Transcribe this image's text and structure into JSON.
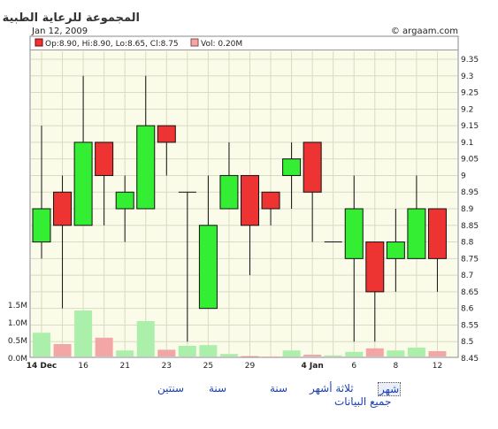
{
  "header": {
    "title": "المجموعة للرعاية الطبية",
    "date": "Jan 12, 2009",
    "source": "© argaam.com"
  },
  "legend": {
    "ohlc_label": "Op:8.90, Hi:8.90, Lo:8.65, Cl:8.75",
    "vol_label": "Vol: 0.20M"
  },
  "colors": {
    "up": "#33ee33",
    "down": "#ee3333",
    "vol_up": "#aaf0aa",
    "vol_down": "#f3a6a6",
    "plot_bg": "#fbfbe9",
    "grid": "#dadbc2"
  },
  "chart_data": {
    "type": "candlestick",
    "x_tick_labels": [
      "14 Dec",
      "16",
      "21",
      "23",
      "25",
      "29",
      "4 Jan",
      "6",
      "8",
      "12"
    ],
    "price_axis": {
      "ylim": [
        8.45,
        9.35
      ],
      "ticks": [
        "8.45",
        "8.5",
        "8.55",
        "8.6",
        "8.65",
        "8.7",
        "8.75",
        "8.8",
        "8.85",
        "8.9",
        "8.95",
        "9",
        "9.05",
        "9.1",
        "9.15",
        "9.2",
        "9.25",
        "9.3",
        "9.35"
      ]
    },
    "volume_axis": {
      "ylim": [
        0,
        1.5
      ],
      "ticks": [
        "0.0M",
        "0.5M",
        "1.0M",
        "1.5M"
      ]
    },
    "candles": [
      {
        "open": 8.8,
        "high": 9.15,
        "low": 8.75,
        "close": 8.9,
        "volume": 0.72
      },
      {
        "open": 8.95,
        "high": 9.0,
        "low": 8.6,
        "close": 8.85,
        "volume": 0.4
      },
      {
        "open": 8.85,
        "high": 9.3,
        "low": 8.85,
        "close": 9.1,
        "volume": 1.35
      },
      {
        "open": 9.1,
        "high": 9.1,
        "low": 8.85,
        "close": 9.0,
        "volume": 0.58
      },
      {
        "open": 8.9,
        "high": 9.0,
        "low": 8.8,
        "close": 8.95,
        "volume": 0.22
      },
      {
        "open": 8.9,
        "high": 9.3,
        "low": 8.9,
        "close": 9.15,
        "volume": 1.05
      },
      {
        "open": 9.15,
        "high": 9.15,
        "low": 9.0,
        "close": 9.1,
        "volume": 0.24
      },
      {
        "open": 8.95,
        "high": 8.95,
        "low": 8.5,
        "close": 8.95,
        "volume": 0.35
      },
      {
        "open": 8.6,
        "high": 9.0,
        "low": 8.6,
        "close": 8.85,
        "volume": 0.37
      },
      {
        "open": 8.9,
        "high": 9.1,
        "low": 8.9,
        "close": 9.0,
        "volume": 0.12
      },
      {
        "open": 9.0,
        "high": 9.0,
        "low": 8.7,
        "close": 8.85,
        "volume": 0.06
      },
      {
        "open": 8.95,
        "high": 8.95,
        "low": 8.85,
        "close": 8.9,
        "volume": 0.05
      },
      {
        "open": 9.0,
        "high": 9.1,
        "low": 8.9,
        "close": 9.05,
        "volume": 0.22
      },
      {
        "open": 9.1,
        "high": 9.1,
        "low": 8.8,
        "close": 8.95,
        "volume": 0.1
      },
      {
        "open": 8.8,
        "high": 8.8,
        "low": 8.8,
        "close": 8.8,
        "volume": 0.08
      },
      {
        "open": 8.75,
        "high": 9.0,
        "low": 8.5,
        "close": 8.9,
        "volume": 0.18
      },
      {
        "open": 8.8,
        "high": 8.8,
        "low": 8.5,
        "close": 8.65,
        "volume": 0.28
      },
      {
        "open": 8.75,
        "high": 8.9,
        "low": 8.65,
        "close": 8.8,
        "volume": 0.22
      },
      {
        "open": 8.75,
        "high": 9.0,
        "low": 8.75,
        "close": 8.9,
        "volume": 0.3
      },
      {
        "open": 8.9,
        "high": 8.9,
        "low": 8.65,
        "close": 8.75,
        "volume": 0.2
      }
    ]
  },
  "nav": {
    "month": "شهر",
    "three_months": "ثلاثة أشهر",
    "year": "سنة",
    "two_years": "سنتين",
    "all_data": "جميع البيانات"
  }
}
